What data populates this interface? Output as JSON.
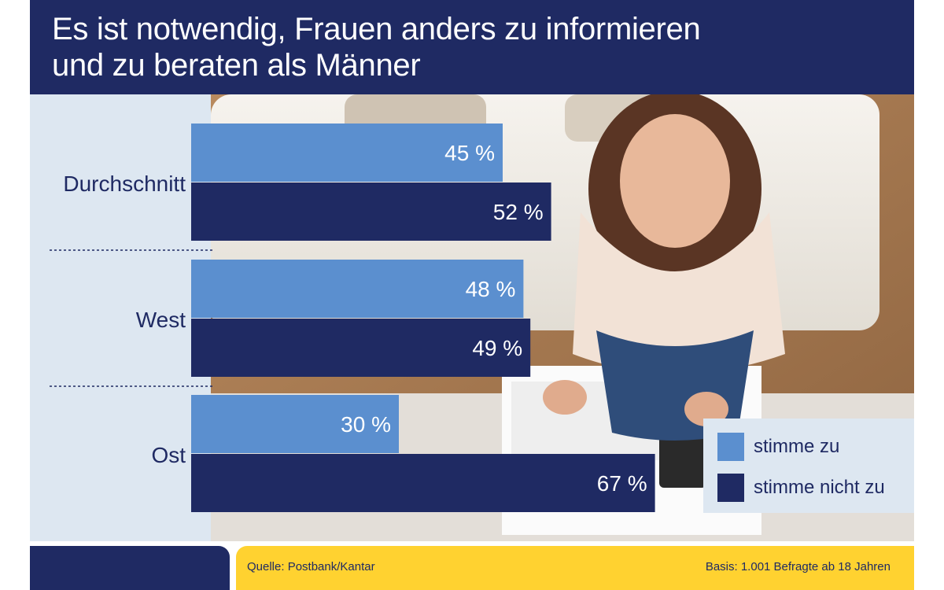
{
  "title": {
    "line1": "Es ist notwendig, Frauen anders zu informieren",
    "line2": "und zu beraten als Männer"
  },
  "legend": {
    "agree": "stimme zu",
    "disagree": "stimme nicht zu"
  },
  "footer": {
    "source": "Quelle: Postbank/Kantar",
    "basis": "Basis: 1.001 Befragte ab 18 Jahren"
  },
  "colors": {
    "agree": "#5b8fcf",
    "disagree": "#1f2a63",
    "accent_yellow": "#ffd230",
    "panel": "#dde7f1"
  },
  "chart_data": {
    "type": "bar",
    "orientation": "horizontal",
    "categories": [
      "Durchschnitt",
      "West",
      "Ost"
    ],
    "series": [
      {
        "name": "stimme zu",
        "values": [
          45,
          48,
          30
        ]
      },
      {
        "name": "stimme nicht zu",
        "values": [
          52,
          49,
          67
        ]
      }
    ],
    "value_suffix": " %",
    "xlim": [
      0,
      100
    ],
    "grid": false,
    "legend_position": "bottom-right"
  }
}
